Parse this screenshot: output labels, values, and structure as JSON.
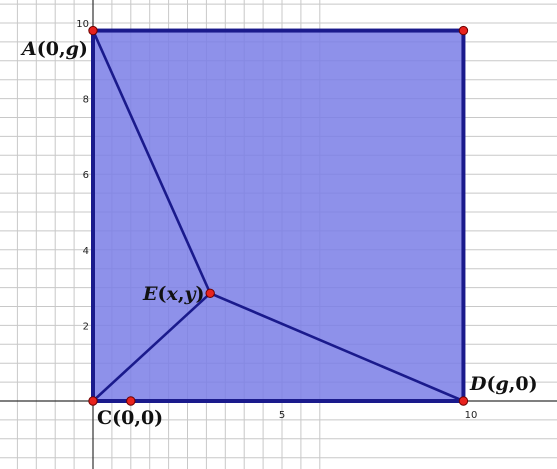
{
  "colors": {
    "grid": "#c8c8c8",
    "axis": "#333333",
    "fill": "#7a7ee6",
    "edge": "#1a1a8c",
    "point_fill": "#e8231e",
    "point_stroke": "#6b0000"
  },
  "x_ticks": [
    {
      "value": 5,
      "label": "5"
    },
    {
      "value": 10,
      "label": "10"
    }
  ],
  "y_ticks": [
    {
      "value": 2,
      "label": "2"
    },
    {
      "value": 4,
      "label": "4"
    },
    {
      "value": 6,
      "label": "6"
    },
    {
      "value": 8,
      "label": "8"
    },
    {
      "value": 10,
      "label": "10"
    }
  ],
  "square": {
    "x0": 0,
    "y0": 0,
    "x1": 9.8,
    "y1": 9.8
  },
  "points": {
    "A": {
      "x": 0,
      "y": 9.8,
      "label_prefix": "A",
      "label_open": "(0,",
      "label_var": "g",
      "label_close": ")"
    },
    "B": {
      "x": 9.8,
      "y": 9.8
    },
    "C": {
      "x": 0,
      "y": 0,
      "label": "C(0,0)"
    },
    "D": {
      "x": 9.8,
      "y": 0,
      "label_prefix": "D",
      "label_open": "(",
      "label_var": "g",
      "label_close": ",0)"
    },
    "E": {
      "x": 3.1,
      "y": 2.85,
      "label_prefix": "E",
      "label_open": "(",
      "label_var_x": "x",
      "label_comma": ",",
      "label_var_y": "y",
      "label_close": ")"
    },
    "F": {
      "x": 1.0,
      "y": 0
    }
  }
}
